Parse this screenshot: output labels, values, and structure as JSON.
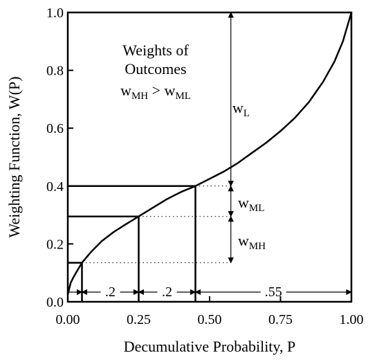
{
  "chart_data": {
    "type": "line",
    "xlabel": "Decumulative Probability, P",
    "ylabel": "Weighting Function, W(P)",
    "xlim": [
      0,
      1
    ],
    "ylim": [
      0,
      1
    ],
    "x_ticks": [
      {
        "value": 0,
        "label": "0.00"
      },
      {
        "value": 0.25,
        "label": "0.25"
      },
      {
        "value": 0.5,
        "label": "0.50"
      },
      {
        "value": 0.75,
        "label": "0.75"
      },
      {
        "value": 1,
        "label": "1.00"
      }
    ],
    "y_ticks": [
      {
        "value": 0,
        "label": "0.0"
      },
      {
        "value": 0.2,
        "label": "0.2"
      },
      {
        "value": 0.4,
        "label": "0.4"
      },
      {
        "value": 0.6,
        "label": "0.6"
      },
      {
        "value": 0.8,
        "label": "0.8"
      },
      {
        "value": 1,
        "label": "1.0"
      }
    ],
    "series": [
      {
        "x": [
          0,
          0.01,
          0.02,
          0.035,
          0.05,
          0.08,
          0.12,
          0.16,
          0.2,
          0.25,
          0.3,
          0.35,
          0.4,
          0.45,
          0.5,
          0.55,
          0.6,
          0.65,
          0.7,
          0.75,
          0.8,
          0.85,
          0.9,
          0.94,
          0.97,
          1.0
        ],
        "y": [
          0.025,
          0.065,
          0.085,
          0.11,
          0.135,
          0.17,
          0.21,
          0.24,
          0.265,
          0.295,
          0.325,
          0.355,
          0.38,
          0.4,
          0.425,
          0.45,
          0.48,
          0.515,
          0.55,
          0.59,
          0.635,
          0.69,
          0.76,
          0.83,
          0.9,
          1.0
        ]
      }
    ],
    "marked_points": [
      {
        "x": 0.05,
        "y": 0.135
      },
      {
        "x": 0.25,
        "y": 0.295
      },
      {
        "x": 0.45,
        "y": 0.4
      }
    ],
    "annotation_box": {
      "line1": "Weights of",
      "line2": "Outcomes",
      "w1": "w",
      "w1_sub": "MH",
      "gt": " > ",
      "w2": "w",
      "w2_sub": "ML"
    },
    "weight_labels": {
      "arrow_x": 0.575,
      "wL": {
        "base": "w",
        "sub": "L",
        "from": 0.4,
        "to": 1.0
      },
      "wML": {
        "base": "w",
        "sub": "ML",
        "from": 0.295,
        "to": 0.4
      },
      "wMH": {
        "base": "w",
        "sub": "MH",
        "from": 0.135,
        "to": 0.295
      }
    },
    "gap_labels": [
      {
        "label": ".2",
        "from": 0.05,
        "to": 0.25
      },
      {
        "label": ".2",
        "from": 0.25,
        "to": 0.45
      },
      {
        "label": ".55",
        "from": 0.45,
        "to": 1.0
      }
    ],
    "grid": false,
    "legend": "none"
  }
}
